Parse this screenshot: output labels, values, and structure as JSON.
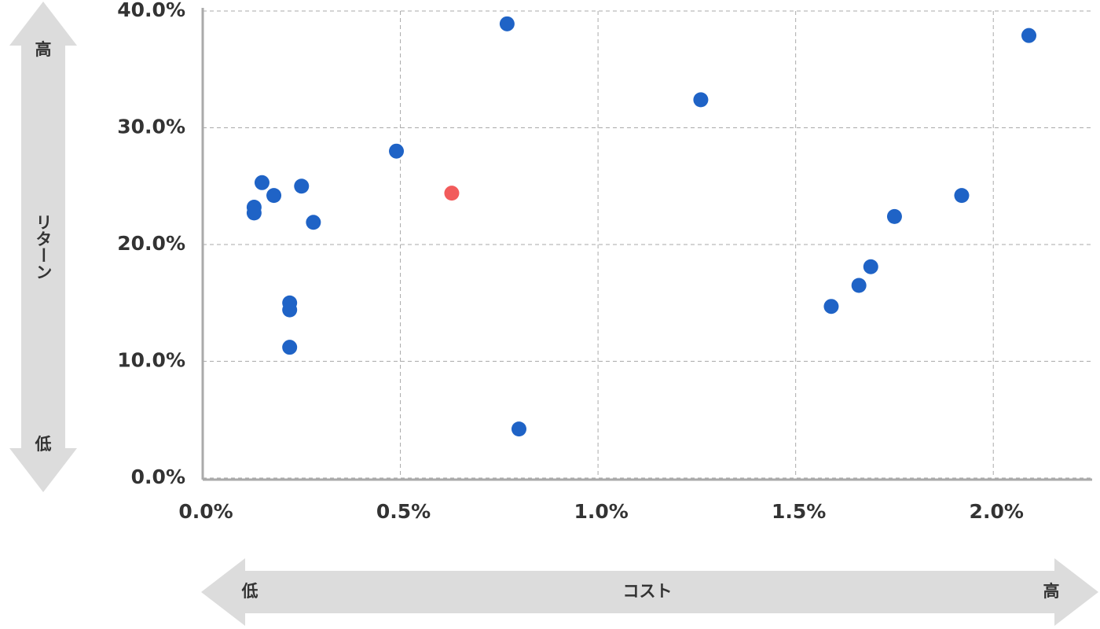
{
  "chart_data": {
    "type": "scatter",
    "ylabel": "リターン",
    "y_high": "高",
    "y_low": "低",
    "xlabel": "コスト",
    "x_low": "低",
    "x_high": "高",
    "x": [
      0.13,
      0.13,
      0.15,
      0.18,
      0.25,
      0.28,
      0.22,
      0.22,
      0.22,
      0.49,
      0.63,
      0.77,
      0.8,
      1.26,
      1.59,
      1.66,
      1.69,
      1.75,
      1.92,
      2.09
    ],
    "values": [
      23.2,
      22.7,
      25.3,
      24.2,
      25.0,
      21.9,
      15.0,
      14.4,
      11.2,
      28.0,
      24.4,
      38.9,
      4.2,
      32.4,
      14.7,
      16.5,
      18.1,
      22.4,
      24.2,
      37.9
    ],
    "colors": [
      "#1f63c6",
      "#1f63c6",
      "#1f63c6",
      "#1f63c6",
      "#1f63c6",
      "#1f63c6",
      "#1f63c6",
      "#1f63c6",
      "#1f63c6",
      "#1f63c6",
      "#f25b5b",
      "#1f63c6",
      "#1f63c6",
      "#1f63c6",
      "#1f63c6",
      "#1f63c6",
      "#1f63c6",
      "#1f63c6",
      "#1f63c6",
      "#1f63c6"
    ],
    "xlim": [
      0,
      2.25
    ],
    "ylim": [
      0,
      40
    ],
    "xticks": [
      {
        "value": 0,
        "label": "0.0%"
      },
      {
        "value": 0.5,
        "label": "0.5%"
      },
      {
        "value": 1.0,
        "label": "1.0%"
      },
      {
        "value": 1.5,
        "label": "1.5%"
      },
      {
        "value": 2.0,
        "label": "2.0%"
      }
    ],
    "yticks": [
      {
        "value": 0,
        "label": "0.0%"
      },
      {
        "value": 10,
        "label": "10.0%"
      },
      {
        "value": 20,
        "label": "20.0%"
      },
      {
        "value": 30,
        "label": "30.0%"
      },
      {
        "value": 40,
        "label": "40.0%"
      }
    ],
    "grid": true
  }
}
